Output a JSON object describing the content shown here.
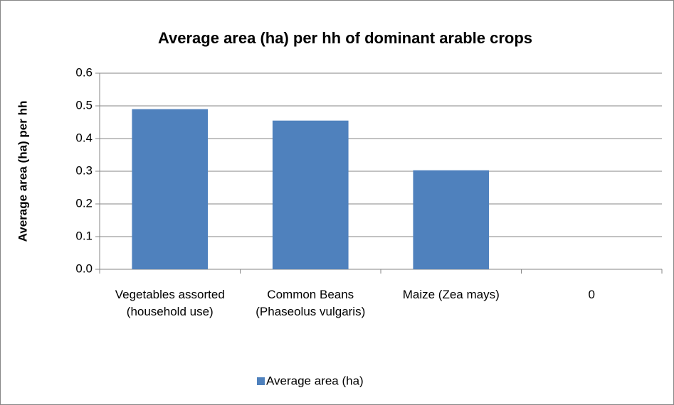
{
  "chart_data": {
    "type": "bar",
    "title": "Average area (ha) per hh of dominant arable  crops",
    "y_label": "Average area (ha) per hh",
    "categories": [
      "Vegetables assorted (household use)",
      "Common Beans (Phaseolus vulgaris)",
      "Maize (Zea mays)",
      "0"
    ],
    "series": [
      {
        "name": "Average area (ha)",
        "color": "#4f81bd",
        "values": [
          0.49,
          0.455,
          0.303,
          0
        ]
      }
    ],
    "ylim": [
      0,
      0.6
    ],
    "yticks": [
      {
        "value": 0,
        "label": "0.0"
      },
      0.1,
      0.2,
      0.3,
      0.4,
      0.5,
      0.6
    ],
    "grid": true,
    "legend": "bottom"
  }
}
